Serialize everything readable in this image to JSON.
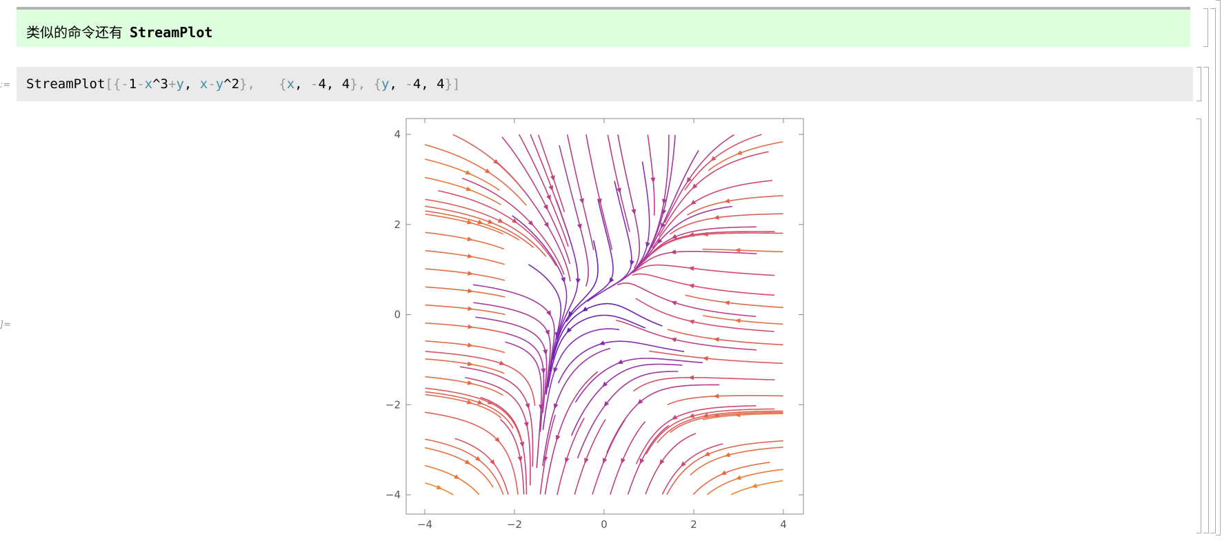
{
  "text_cell": {
    "text": "类似的命令还有",
    "bold": "StreamPlot"
  },
  "input": {
    "label": ":=",
    "tokens": [
      {
        "t": "StreamPlot",
        "c": "k"
      },
      {
        "t": "[{",
        "c": "g"
      },
      {
        "t": "-",
        "c": "g"
      },
      {
        "t": "1",
        "c": "k"
      },
      {
        "t": "-",
        "c": "g"
      },
      {
        "t": "x",
        "c": "v"
      },
      {
        "t": "^3",
        "c": "k"
      },
      {
        "t": "+",
        "c": "g"
      },
      {
        "t": "y",
        "c": "v"
      },
      {
        "t": ", ",
        "c": "k"
      },
      {
        "t": "x",
        "c": "v"
      },
      {
        "t": "-",
        "c": "g"
      },
      {
        "t": "y",
        "c": "v"
      },
      {
        "t": "^2",
        "c": "k"
      },
      {
        "t": "},  ",
        "c": "g"
      },
      {
        "t": " {",
        "c": "g"
      },
      {
        "t": "x",
        "c": "v"
      },
      {
        "t": ", ",
        "c": "k"
      },
      {
        "t": "-",
        "c": "g"
      },
      {
        "t": "4, 4",
        "c": "k"
      },
      {
        "t": "}, {",
        "c": "g"
      },
      {
        "t": "y",
        "c": "v"
      },
      {
        "t": ", ",
        "c": "k"
      },
      {
        "t": "-",
        "c": "g"
      },
      {
        "t": "4, 4",
        "c": "k"
      },
      {
        "t": "}]",
        "c": "g"
      }
    ]
  },
  "output": {
    "label": "]="
  },
  "chart_data": {
    "type": "streamplot",
    "field": {
      "vx": "-1-x^3+y",
      "vy": "x-y^2"
    },
    "xlim": [
      -4,
      4
    ],
    "ylim": [
      -4,
      4
    ],
    "xticks": [
      "-4",
      "-2",
      "0",
      "2",
      "4"
    ],
    "yticks": [
      "-4",
      "-2",
      "0",
      "2",
      "4"
    ],
    "xticklabels": [
      "−4",
      "−2",
      "0",
      "2",
      "4"
    ],
    "yticklabels": [
      "−4",
      "−2",
      "0",
      "2",
      "4"
    ],
    "color_scale": {
      "low": "#2a0ba8",
      "mid": "#8a2db4",
      "high_mid": "#d2476e",
      "high": "#f89a10"
    },
    "frame": true
  }
}
